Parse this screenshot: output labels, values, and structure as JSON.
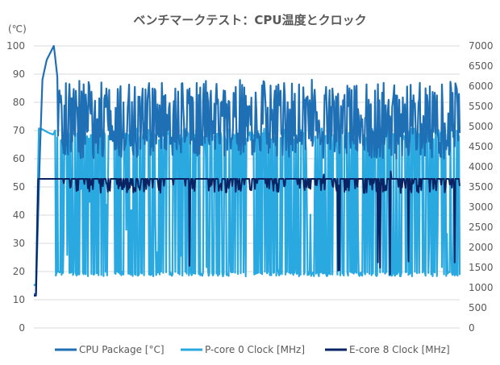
{
  "chart_data": {
    "type": "line",
    "title": "ベンチマークテスト：CPU温度とクロック",
    "ylabel": "(℃)",
    "y2label": "",
    "ylim": [
      0,
      100
    ],
    "y2lim": [
      0,
      7000
    ],
    "yticks": [
      "0",
      "10",
      "20",
      "30",
      "40",
      "50",
      "60",
      "70",
      "80",
      "90",
      "100"
    ],
    "y2ticks": [
      "0",
      "500",
      "1000",
      "1500",
      "2000",
      "2500",
      "3000",
      "3500",
      "4000",
      "4500",
      "5000",
      "5500",
      "6000",
      "6500",
      "7000"
    ],
    "grid": true,
    "legend_position": "bottom",
    "x_samples": 600,
    "series": [
      {
        "name": "CPU Package [°C]",
        "axis": "left",
        "color": "#1f6fb5",
        "startup": [
          [
            0,
            12
          ],
          [
            3,
            12
          ],
          [
            5,
            31
          ],
          [
            8,
            58
          ],
          [
            12,
            88
          ],
          [
            18,
            95
          ],
          [
            24,
            98
          ],
          [
            28,
            100
          ],
          [
            30,
            96
          ],
          [
            33,
            89
          ]
        ],
        "steady_range": [
          58,
          89
        ]
      },
      {
        "name": "P-core 0 Clock [MHz]",
        "axis": "right",
        "color": "#2aa8e0",
        "startup": [
          [
            0,
            1050
          ],
          [
            3,
            1100
          ],
          [
            5,
            3000
          ],
          [
            7,
            4950
          ],
          [
            12,
            4930
          ],
          [
            20,
            4850
          ],
          [
            27,
            4800
          ],
          [
            30,
            4900
          ],
          [
            31,
            1300
          ]
        ],
        "steady_range": [
          1300,
          4950
        ]
      },
      {
        "name": "E-core 8 Clock [MHz]",
        "axis": "right",
        "color": "#0a2463",
        "startup": [
          [
            0,
            800
          ],
          [
            3,
            800
          ],
          [
            6,
            3700
          ],
          [
            40,
            3700
          ]
        ],
        "steady_value": 3700,
        "steady_dips": [
          3350,
          3600
        ],
        "spike_value": 1300
      }
    ]
  }
}
